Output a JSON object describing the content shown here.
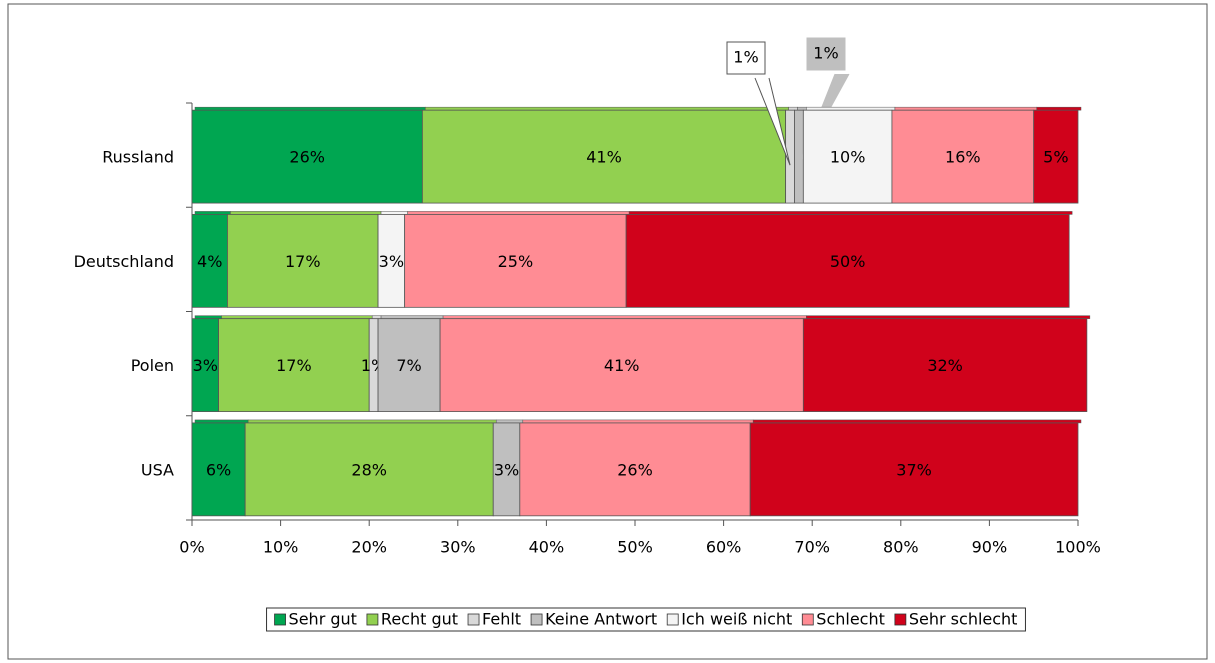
{
  "chart_data": {
    "type": "stacked-bar-horizontal",
    "categories": [
      "Russland",
      "Deutschland",
      "Polen",
      "USA"
    ],
    "series": [
      {
        "name": "Sehr gut",
        "color": "#00a651",
        "values": [
          26,
          4,
          3,
          6
        ],
        "value_labels": [
          "26%",
          "4%",
          "3%",
          "6%"
        ]
      },
      {
        "name": "Recht gut",
        "color": "#92d050",
        "values": [
          41,
          17,
          17,
          28
        ],
        "value_labels": [
          "41%",
          "17%",
          "17%",
          "28%"
        ]
      },
      {
        "name": "Fehlt",
        "color": "#d9d9d9",
        "values": [
          1,
          null,
          1,
          null
        ],
        "value_labels": [
          "1%",
          null,
          "1%",
          null
        ]
      },
      {
        "name": "Keine Antwort",
        "color": "#bfbfbf",
        "values": [
          1,
          null,
          7,
          3
        ],
        "value_labels": [
          "1%",
          null,
          "7%",
          "3%"
        ]
      },
      {
        "name": "Ich weiß nicht",
        "color": "#f4f4f4",
        "values": [
          10,
          3,
          null,
          null
        ],
        "value_labels": [
          "10%",
          "3%",
          null,
          null
        ]
      },
      {
        "name": "Schlecht",
        "color": "#ff8c94",
        "values": [
          16,
          25,
          41,
          26
        ],
        "value_labels": [
          "16%",
          "25%",
          "41%",
          "26%"
        ]
      },
      {
        "name": "Sehr schlecht",
        "color": "#d0021b",
        "values": [
          5,
          50,
          32,
          37
        ],
        "value_labels": [
          "5%",
          "50%",
          "32%",
          "37%"
        ]
      }
    ],
    "xlim": [
      0,
      100
    ],
    "xticks": [
      {
        "value": 0,
        "label": "0%"
      },
      {
        "value": 10,
        "label": "10%"
      },
      {
        "value": 20,
        "label": "20%"
      },
      {
        "value": 30,
        "label": "30%"
      },
      {
        "value": 40,
        "label": "40%"
      },
      {
        "value": 50,
        "label": "50%"
      },
      {
        "value": 60,
        "label": "60%"
      },
      {
        "value": 70,
        "label": "70%"
      },
      {
        "value": 80,
        "label": "80%"
      },
      {
        "value": 90,
        "label": "90%"
      },
      {
        "value": 100,
        "label": "100%"
      }
    ],
    "legend": "bottom"
  }
}
